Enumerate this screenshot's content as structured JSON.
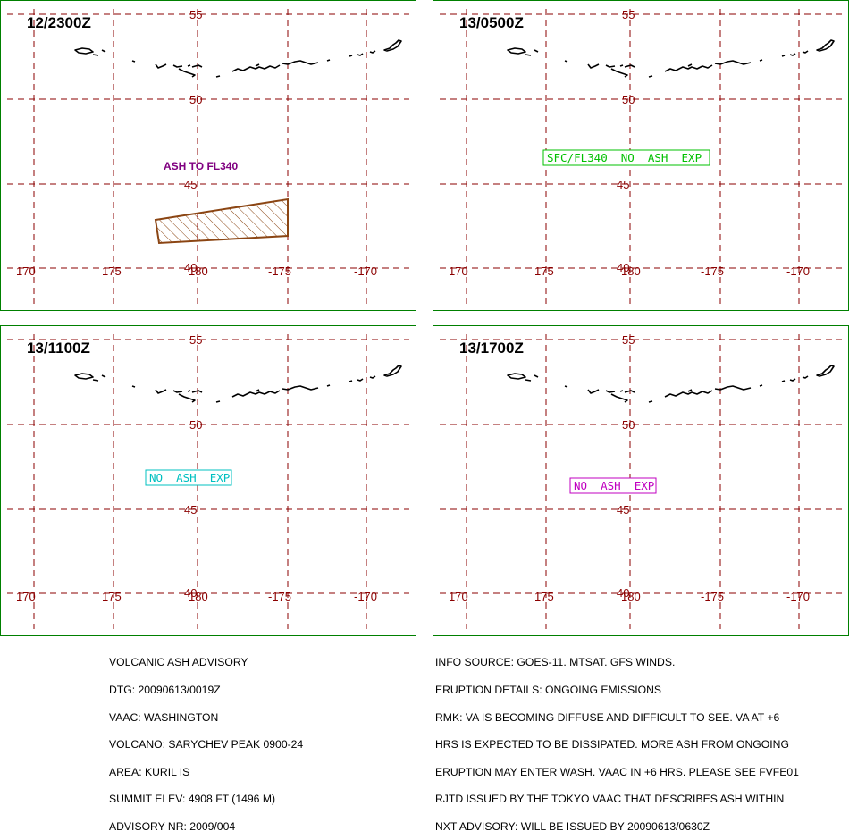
{
  "colors": {
    "frame": "#008000",
    "grid": "#8b0000",
    "labels": "#8b0000",
    "coast": "#000000",
    "ash_poly": "#8b4513",
    "ash_label": "#800080",
    "sfc_box": "#00c000",
    "noash_cyan": "#00c0c0",
    "noash_magenta": "#c000c0"
  },
  "grid_labels": {
    "lat": [
      "55",
      "50",
      "45",
      "40"
    ],
    "lon": [
      "170",
      "175",
      "180",
      "-175",
      "-170"
    ]
  },
  "panels": [
    {
      "time": "12/2300Z",
      "label": "ASH TO FL340",
      "label_style": "plain",
      "has_polygon": true
    },
    {
      "time": "13/0500Z",
      "label": "SFC/FL340  NO  ASH  EXP",
      "label_style": "box_green",
      "has_polygon": false
    },
    {
      "time": "13/1100Z",
      "label": "NO  ASH  EXP",
      "label_style": "box_cyan",
      "has_polygon": false
    },
    {
      "time": "13/1700Z",
      "label": "NO  ASH  EXP",
      "label_style": "box_magenta",
      "has_polygon": false
    }
  ],
  "advisory_left": [
    "VOLCANIC ASH ADVISORY",
    "DTG: 20090613/0019Z",
    "VAAC: WASHINGTON",
    "VOLCANO: SARYCHEV PEAK 0900-24",
    "AREA: KURIL IS",
    "SUMMIT ELEV: 4908 FT (1496 M)",
    "ADVISORY NR: 2009/004"
  ],
  "advisory_right": [
    "INFO SOURCE: GOES-11. MTSAT. GFS WINDS.",
    "ERUPTION DETAILS: ONGOING EMISSIONS",
    "RMK: VA IS BECOMING DIFFUSE AND DIFFICULT TO SEE. VA AT +6",
    "HRS IS EXPECTED TO BE DISSIPATED. MORE ASH FROM ONGOING",
    "ERUPTION MAY ENTER WASH. VAAC IN +6 HRS. PLEASE SEE FVFE01",
    "RJTD ISSUED BY THE TOKYO VAAC THAT DESCRIBES ASH WITHIN",
    "NXT ADVISORY: WILL BE ISSUED BY 20090613/0630Z"
  ]
}
